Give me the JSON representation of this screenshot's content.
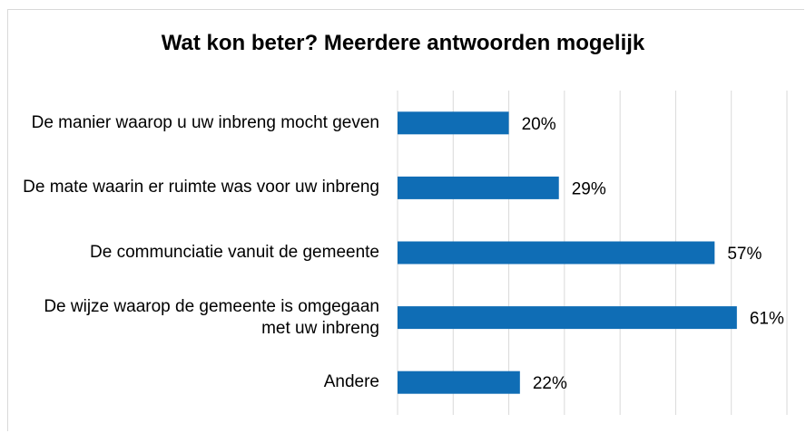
{
  "chart_data": {
    "type": "bar",
    "orientation": "horizontal",
    "title": "Wat kon beter? Meerdere antwoorden mogelijk",
    "categories": [
      "De manier waarop u uw inbreng mocht geven",
      "De mate waarin er ruimte was voor uw inbreng",
      "De communciatie vanuit de gemeente",
      "De wijze waarop de gemeente is omgegaan met uw inbreng",
      "Andere"
    ],
    "values": [
      20,
      29,
      57,
      61,
      22
    ],
    "value_labels": [
      "20%",
      "29%",
      "57%",
      "61%",
      "22%"
    ],
    "color": "#0f6db5",
    "xlim": [
      0,
      70
    ],
    "xticks": [
      0,
      10,
      20,
      30,
      40,
      50,
      60,
      70
    ],
    "grid": true
  }
}
